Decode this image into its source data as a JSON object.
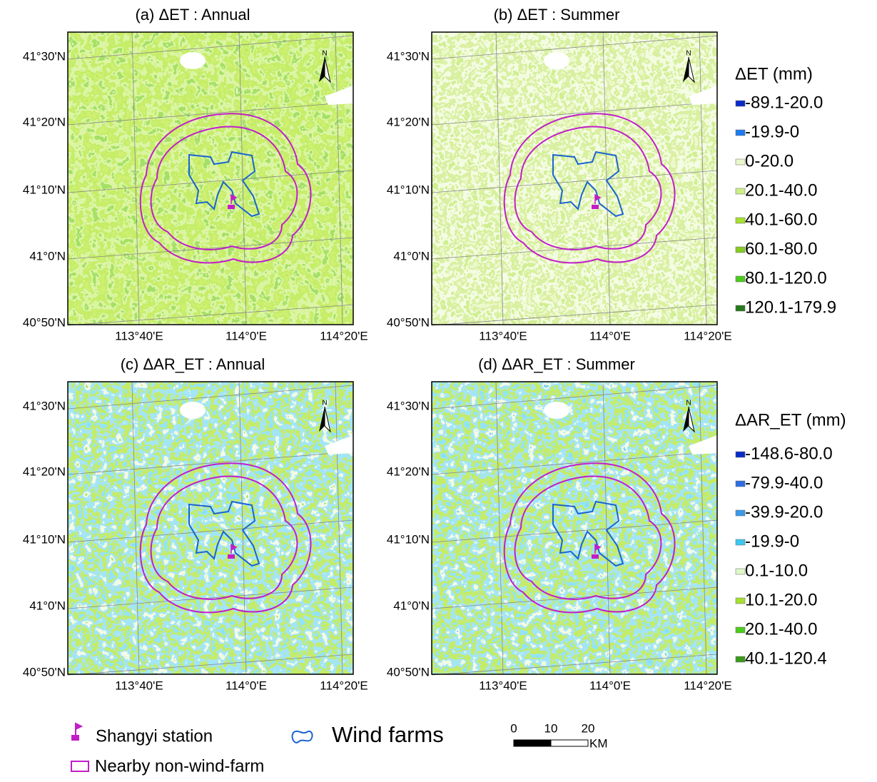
{
  "panels": [
    {
      "title": "(a) ΔET : Annual",
      "palette": [
        "#7ccf1c",
        "#9fe02c",
        "#8ed824",
        "#b4e860",
        "#5fbf22",
        "#c8ee88"
      ]
    },
    {
      "title": "(b) ΔET : Summer",
      "palette": [
        "#c3ea78",
        "#d6f29c",
        "#b0e05a",
        "#e6f8c4",
        "#a4dc4a",
        "#cdee8a"
      ]
    },
    {
      "title": "(c) ΔAR_ET : Annual",
      "palette": [
        "#3fb4ec",
        "#4cc6f0",
        "#8ed624",
        "#5dc8ef",
        "#e6f7c6",
        "#6cc230"
      ]
    },
    {
      "title": "(d) ΔAR_ET : Summer",
      "palette": [
        "#3fb4ec",
        "#4cc6f0",
        "#8ed624",
        "#5dc8ef",
        "#e6f7c6",
        "#3fa8e6"
      ]
    }
  ],
  "lat_labels": [
    "41°30'N",
    "41°20'N",
    "41°10'N",
    "41°0'N",
    "40°50'N"
  ],
  "lon_labels": [
    "113°40'E",
    "114°0'E",
    "114°20'E"
  ],
  "north": "N",
  "legends": [
    {
      "title": "ΔET (mm)",
      "items": [
        {
          "label": "-89.1-20.0",
          "color": "#0a2bc8"
        },
        {
          "label": "-19.9-0",
          "color": "#1e7cf0"
        },
        {
          "label": "0-20.0",
          "color": "#eaf8cc"
        },
        {
          "label": "20.1-40.0",
          "color": "#ccee88"
        },
        {
          "label": "40.1-60.0",
          "color": "#a6e030"
        },
        {
          "label": "60.1-80.0",
          "color": "#86cc22"
        },
        {
          "label": "80.1-120.0",
          "color": "#4ccc1c"
        },
        {
          "label": "120.1-179.9",
          "color": "#267a1c"
        }
      ]
    },
    {
      "title": "ΔAR_ET (mm)",
      "items": [
        {
          "label": "-148.6-80.0",
          "color": "#0a2bc8"
        },
        {
          "label": "-79.9-40.0",
          "color": "#2e6ee0"
        },
        {
          "label": "-39.9-20.0",
          "color": "#3a9ae8"
        },
        {
          "label": "-19.9-0",
          "color": "#3cc8f0"
        },
        {
          "label": "0.1-10.0",
          "color": "#e0f8c8"
        },
        {
          "label": "10.1-20.0",
          "color": "#a6e030"
        },
        {
          "label": "20.1-40.0",
          "color": "#4ccc1c"
        },
        {
          "label": "40.1-120.4",
          "color": "#3a9a1c"
        }
      ]
    }
  ],
  "bottom_legend": {
    "station": "Shangyi station",
    "wind_farms": "Wind farms",
    "nearby": "Nearby non-wind-farm"
  },
  "scale_bar": {
    "ticks": [
      "0",
      "10",
      "20"
    ],
    "unit": "KM"
  }
}
